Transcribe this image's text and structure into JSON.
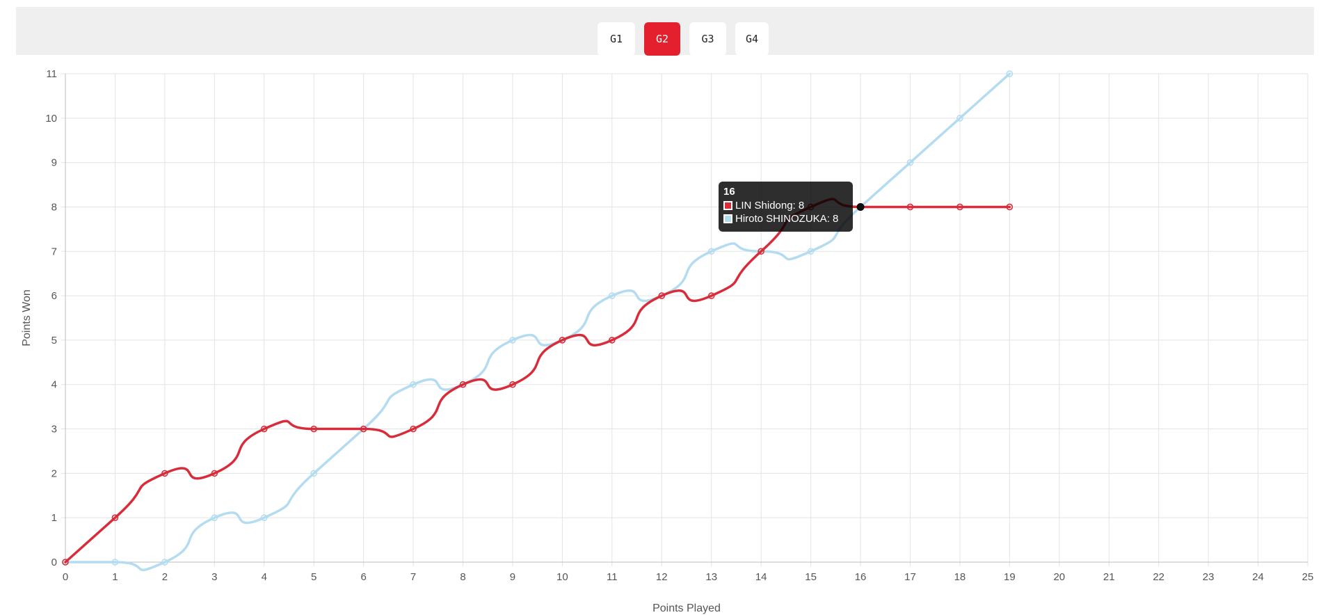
{
  "tabs": [
    {
      "label": "G1",
      "active": false
    },
    {
      "label": "G2",
      "active": true
    },
    {
      "label": "G3",
      "active": false
    },
    {
      "label": "G4",
      "active": false
    }
  ],
  "chart_data": {
    "type": "line",
    "xlabel": "Points Played",
    "ylabel": "Points Won",
    "xlim": [
      0,
      25
    ],
    "ylim": [
      0,
      11
    ],
    "xticks": [
      "0",
      "1",
      "2",
      "3",
      "4",
      "5",
      "6",
      "7",
      "8",
      "9",
      "10",
      "11",
      "12",
      "13",
      "14",
      "15",
      "16",
      "17",
      "18",
      "19",
      "20",
      "21",
      "22",
      "23",
      "24",
      "25"
    ],
    "yticks": [
      "0",
      "1",
      "2",
      "3",
      "4",
      "5",
      "6",
      "7",
      "8",
      "9",
      "10",
      "11"
    ],
    "grid": true,
    "legend": "none",
    "x": [
      0,
      1,
      2,
      3,
      4,
      5,
      6,
      7,
      8,
      9,
      10,
      11,
      12,
      13,
      14,
      15,
      16,
      17,
      18,
      19
    ],
    "series": [
      {
        "name": "LIN Shidong",
        "color": "#d92c3a",
        "values": [
          0,
          1,
          2,
          2,
          3,
          3,
          3,
          3,
          4,
          4,
          5,
          5,
          6,
          6,
          7,
          8,
          8,
          8,
          8,
          8
        ]
      },
      {
        "name": "Hiroto SHINOZUKA",
        "color": "#b3dcf1",
        "values": [
          0,
          0,
          0,
          1,
          1,
          2,
          3,
          4,
          4,
          5,
          5,
          6,
          6,
          7,
          7,
          7,
          8,
          9,
          10,
          11
        ]
      }
    ],
    "tooltip": {
      "title": "16",
      "rows": [
        "LIN Shidong: 8",
        "Hiroto SHINOZUKA: 8"
      ],
      "swatch_colors": [
        "#d92c3a",
        "#b3dcf1"
      ],
      "x": 16,
      "y": 8
    }
  }
}
